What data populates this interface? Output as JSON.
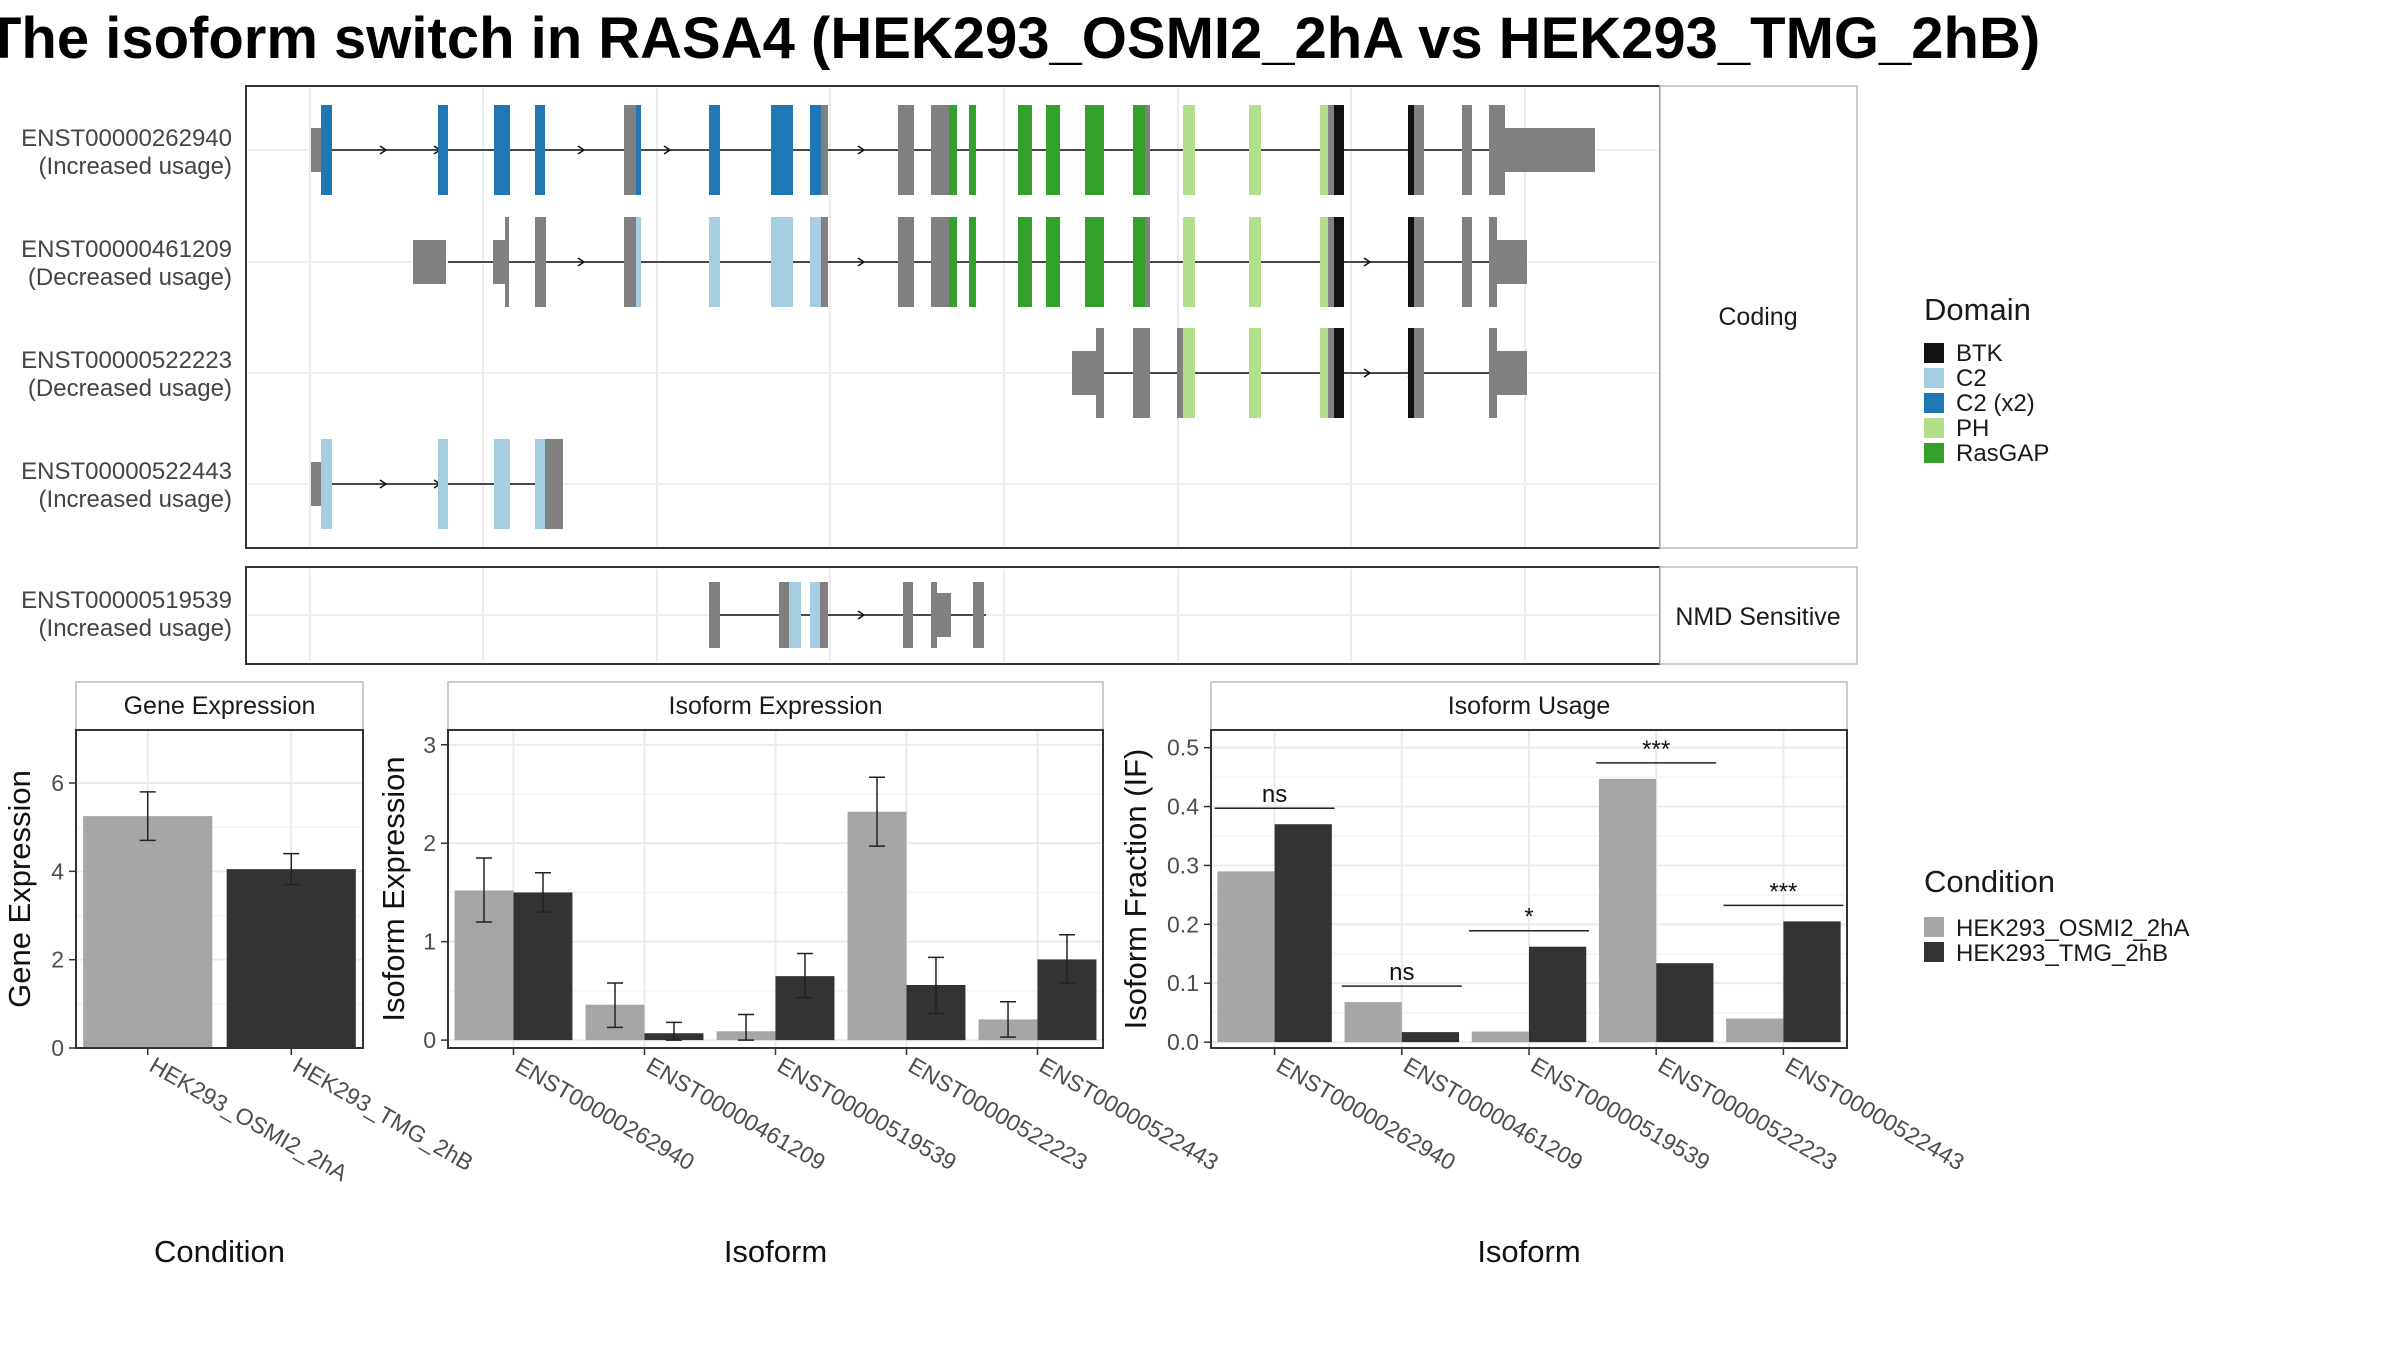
{
  "title": "The isoform switch in RASA4 (HEK293_OSMI2_2hA vs HEK293_TMG_2hB)",
  "colors": {
    "cond_a": "#a6a6a6",
    "cond_b": "#333333",
    "exon": "#808080",
    "BTK": "#111111",
    "C2": "#a6cee3",
    "C2 (x2)": "#1f78b4",
    "PH": "#b2df8a",
    "RasGAP": "#33a02c"
  },
  "structure": {
    "facets": [
      "Coding",
      "NMD Sensitive"
    ],
    "transcripts": [
      {
        "id": "ENST00000262940",
        "usage": "(Increased usage)",
        "facet": "Coding"
      },
      {
        "id": "ENST00000461209",
        "usage": "(Decreased usage)",
        "facet": "Coding"
      },
      {
        "id": "ENST00000522223",
        "usage": "(Decreased usage)",
        "facet": "Coding"
      },
      {
        "id": "ENST00000522443",
        "usage": "(Increased usage)",
        "facet": "Coding"
      },
      {
        "id": "ENST00000519539",
        "usage": "(Increased usage)",
        "facet": "NMD Sensitive"
      }
    ]
  },
  "legend_domain": {
    "title": "Domain",
    "items": [
      "BTK",
      "C2",
      "C2 (x2)",
      "PH",
      "RasGAP"
    ]
  },
  "legend_condition": {
    "title": "Condition",
    "items": [
      "HEK293_OSMI2_2hA",
      "HEK293_TMG_2hB"
    ]
  },
  "chart_data": [
    {
      "type": "bar",
      "title": "Gene Expression",
      "xlabel": "Condition",
      "ylabel": "Gene Expression",
      "categories": [
        "HEK293_OSMI2_2hA",
        "HEK293_TMG_2hB"
      ],
      "values": [
        5.25,
        4.05
      ],
      "errors": [
        [
          4.7,
          5.8
        ],
        [
          3.7,
          4.4
        ]
      ],
      "ylim": [
        0,
        7.2
      ],
      "yticks": [
        0,
        2,
        4,
        6
      ]
    },
    {
      "type": "bar",
      "title": "Isoform Expression",
      "xlabel": "Isoform",
      "ylabel": "Isoform Expression",
      "categories": [
        "ENST00000262940",
        "ENST00000461209",
        "ENST00000519539",
        "ENST00000522223",
        "ENST00000522443"
      ],
      "series": [
        {
          "name": "HEK293_OSMI2_2hA",
          "values": [
            1.52,
            0.36,
            0.09,
            2.32,
            0.21
          ],
          "errors": [
            [
              1.2,
              1.85
            ],
            [
              0.13,
              0.58
            ],
            [
              0.0,
              0.26
            ],
            [
              1.97,
              2.67
            ],
            [
              0.03,
              0.39
            ]
          ]
        },
        {
          "name": "HEK293_TMG_2hB",
          "values": [
            1.5,
            0.07,
            0.65,
            0.56,
            0.82
          ],
          "errors": [
            [
              1.3,
              1.7
            ],
            [
              0.0,
              0.18
            ],
            [
              0.43,
              0.88
            ],
            [
              0.27,
              0.84
            ],
            [
              0.58,
              1.07
            ]
          ]
        }
      ],
      "ylim": [
        -0.08,
        3.15
      ],
      "yticks": [
        0,
        1,
        2,
        3
      ]
    },
    {
      "type": "bar",
      "title": "Isoform Usage",
      "xlabel": "Isoform",
      "ylabel": "Isoform Fraction (IF)",
      "categories": [
        "ENST00000262940",
        "ENST00000461209",
        "ENST00000519539",
        "ENST00000522223",
        "ENST00000522443"
      ],
      "series": [
        {
          "name": "HEK293_OSMI2_2hA",
          "values": [
            0.29,
            0.068,
            0.018,
            0.447,
            0.04
          ]
        },
        {
          "name": "HEK293_TMG_2hB",
          "values": [
            0.37,
            0.017,
            0.162,
            0.134,
            0.205
          ]
        }
      ],
      "significance": [
        "ns",
        "ns",
        "*",
        "***",
        "***"
      ],
      "ylim": [
        -0.01,
        0.53
      ],
      "yticks": [
        0.0,
        0.1,
        0.2,
        0.3,
        0.4,
        0.5
      ]
    }
  ]
}
